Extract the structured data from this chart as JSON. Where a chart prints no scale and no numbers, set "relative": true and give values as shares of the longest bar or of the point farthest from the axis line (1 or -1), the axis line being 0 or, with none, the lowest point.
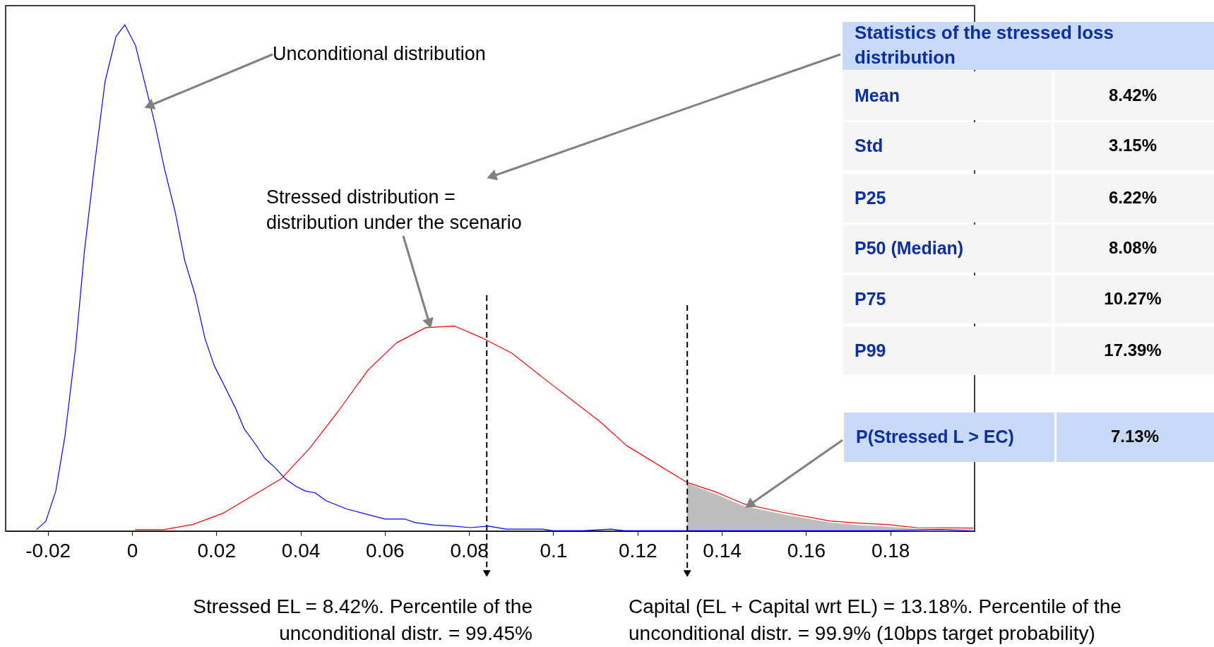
{
  "chart_data": {
    "type": "line",
    "relative": true,
    "xlim": [
      -0.03,
      0.2
    ],
    "xticks": [
      -0.02,
      0,
      0.02,
      0.04,
      0.06,
      0.08,
      0.1,
      0.12,
      0.14,
      0.16,
      0.18
    ],
    "grid": false,
    "marker": "none",
    "line_style": "solid",
    "series": [
      {
        "type": "area",
        "color": "#bebebe",
        "x": [
          0.1318,
          0.1384,
          0.1452,
          0.1546,
          0.1657,
          0.1725,
          0.1793,
          0.1862,
          0.1997
        ],
        "values": [
          0.094,
          0.074,
          0.05,
          0.033,
          0.017,
          0.012,
          0.009,
          0.005,
          0.004
        ]
      },
      {
        "type": "line",
        "color": "#0000ff",
        "x": [
          -0.0227,
          -0.0205,
          -0.0181,
          -0.0159,
          -0.0134,
          -0.0113,
          -0.0088,
          -0.0064,
          -0.0038,
          -0.0017,
          0.0008,
          0.0054,
          0.0077,
          0.0102,
          0.0125,
          0.015,
          0.0173,
          0.0195,
          0.022,
          0.0245,
          0.0267,
          0.0292,
          0.0315,
          0.034,
          0.0363,
          0.0388,
          0.0412,
          0.0434,
          0.0461,
          0.0509,
          0.0601,
          0.0647,
          0.0672,
          0.0718,
          0.0764,
          0.0803,
          0.0846,
          0.0888,
          0.0974,
          0.0999,
          0.1068,
          0.1136,
          0.117,
          0.14,
          0.16,
          0.18,
          0.192,
          0.1997
        ],
        "values": [
          0.003,
          0.019,
          0.079,
          0.189,
          0.362,
          0.553,
          0.73,
          0.888,
          0.977,
          1.0,
          0.96,
          0.806,
          0.716,
          0.632,
          0.535,
          0.466,
          0.381,
          0.327,
          0.286,
          0.244,
          0.201,
          0.173,
          0.144,
          0.125,
          0.104,
          0.089,
          0.079,
          0.076,
          0.06,
          0.044,
          0.024,
          0.024,
          0.017,
          0.012,
          0.01,
          0.007,
          0.01,
          0.004,
          0.004,
          0.001,
          0.001,
          0.004,
          0.001,
          0.001,
          0.001,
          0.001,
          0.003,
          0.0
        ]
      },
      {
        "type": "line",
        "color": "#ff0000",
        "x": [
          0.0007,
          0.0075,
          0.0144,
          0.0215,
          0.0355,
          0.0422,
          0.0493,
          0.0561,
          0.0628,
          0.0697,
          0.0766,
          0.0833,
          0.0901,
          0.0974,
          0.111,
          0.1174,
          0.1318,
          0.1384,
          0.1452,
          0.1546,
          0.1657,
          0.1725,
          0.1793,
          0.1862,
          0.1997
        ],
        "values": [
          0.003,
          0.003,
          0.013,
          0.035,
          0.104,
          0.164,
          0.241,
          0.319,
          0.372,
          0.402,
          0.405,
          0.381,
          0.352,
          0.304,
          0.217,
          0.169,
          0.096,
          0.078,
          0.054,
          0.037,
          0.02,
          0.016,
          0.013,
          0.007,
          0.006
        ]
      }
    ],
    "ref_lines": [
      {
        "axis": "x",
        "value": 0.0842,
        "color": "#000000",
        "line_style": "dashed"
      },
      {
        "axis": "x",
        "value": 0.1318,
        "color": "#000000",
        "line_style": "dashed"
      }
    ],
    "annotations": [
      "Unconditional distribution",
      "Stressed distribution =\ndistribution under the scenario",
      "Statistics of the stressed loss\ndistribution",
      "Mean",
      "8.42%",
      "Std",
      "3.15%",
      "P25",
      "6.22%",
      "P50 (Median)",
      "8.08%",
      "P75",
      "10.27%",
      "P99",
      "17.39%",
      "P(Stressed L > EC)",
      "7.13%",
      "Stressed EL = 8.42%. Percentile of the\nunconditional distr. = 99.45%",
      "Capital (EL + Capital wrt EL) = 13.18%. Percentile of the\nunconditional distr. = 99.9% (10bps target probability)"
    ]
  }
}
